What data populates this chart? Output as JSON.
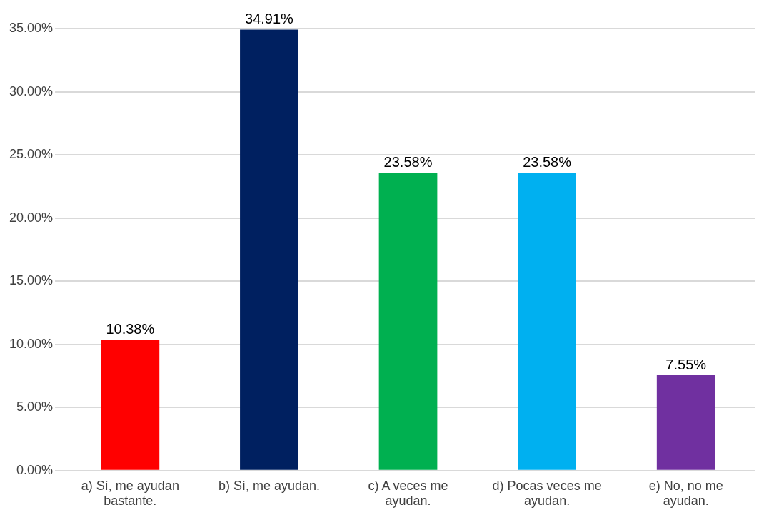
{
  "chart_data": {
    "type": "bar",
    "categories": [
      "a) Sí, me ayudan bastante.",
      "b) Sí, me ayudan.",
      "c) A veces me ayudan.",
      "d) Pocas veces me ayudan.",
      "e) No, no me ayudan."
    ],
    "values": [
      10.38,
      34.91,
      23.58,
      23.58,
      7.55
    ],
    "colors": [
      "#ff0000",
      "#002060",
      "#00b050",
      "#00b0f0",
      "#7030a0"
    ],
    "value_labels": [
      "10.38%",
      "34.91%",
      "23.58%",
      "23.58%",
      "7.55%"
    ],
    "ylim": [
      0,
      35
    ],
    "yticks": [
      {
        "value": 0,
        "label": "0.00%"
      },
      {
        "value": 5,
        "label": "5.00%"
      },
      {
        "value": 10,
        "label": "10.00%"
      },
      {
        "value": 15,
        "label": "15.00%"
      },
      {
        "value": 20,
        "label": "20.00%"
      },
      {
        "value": 25,
        "label": "25.00%"
      },
      {
        "value": 30,
        "label": "30.00%"
      },
      {
        "value": 35,
        "label": "35.00%"
      }
    ],
    "grid": "y",
    "legend": false
  }
}
